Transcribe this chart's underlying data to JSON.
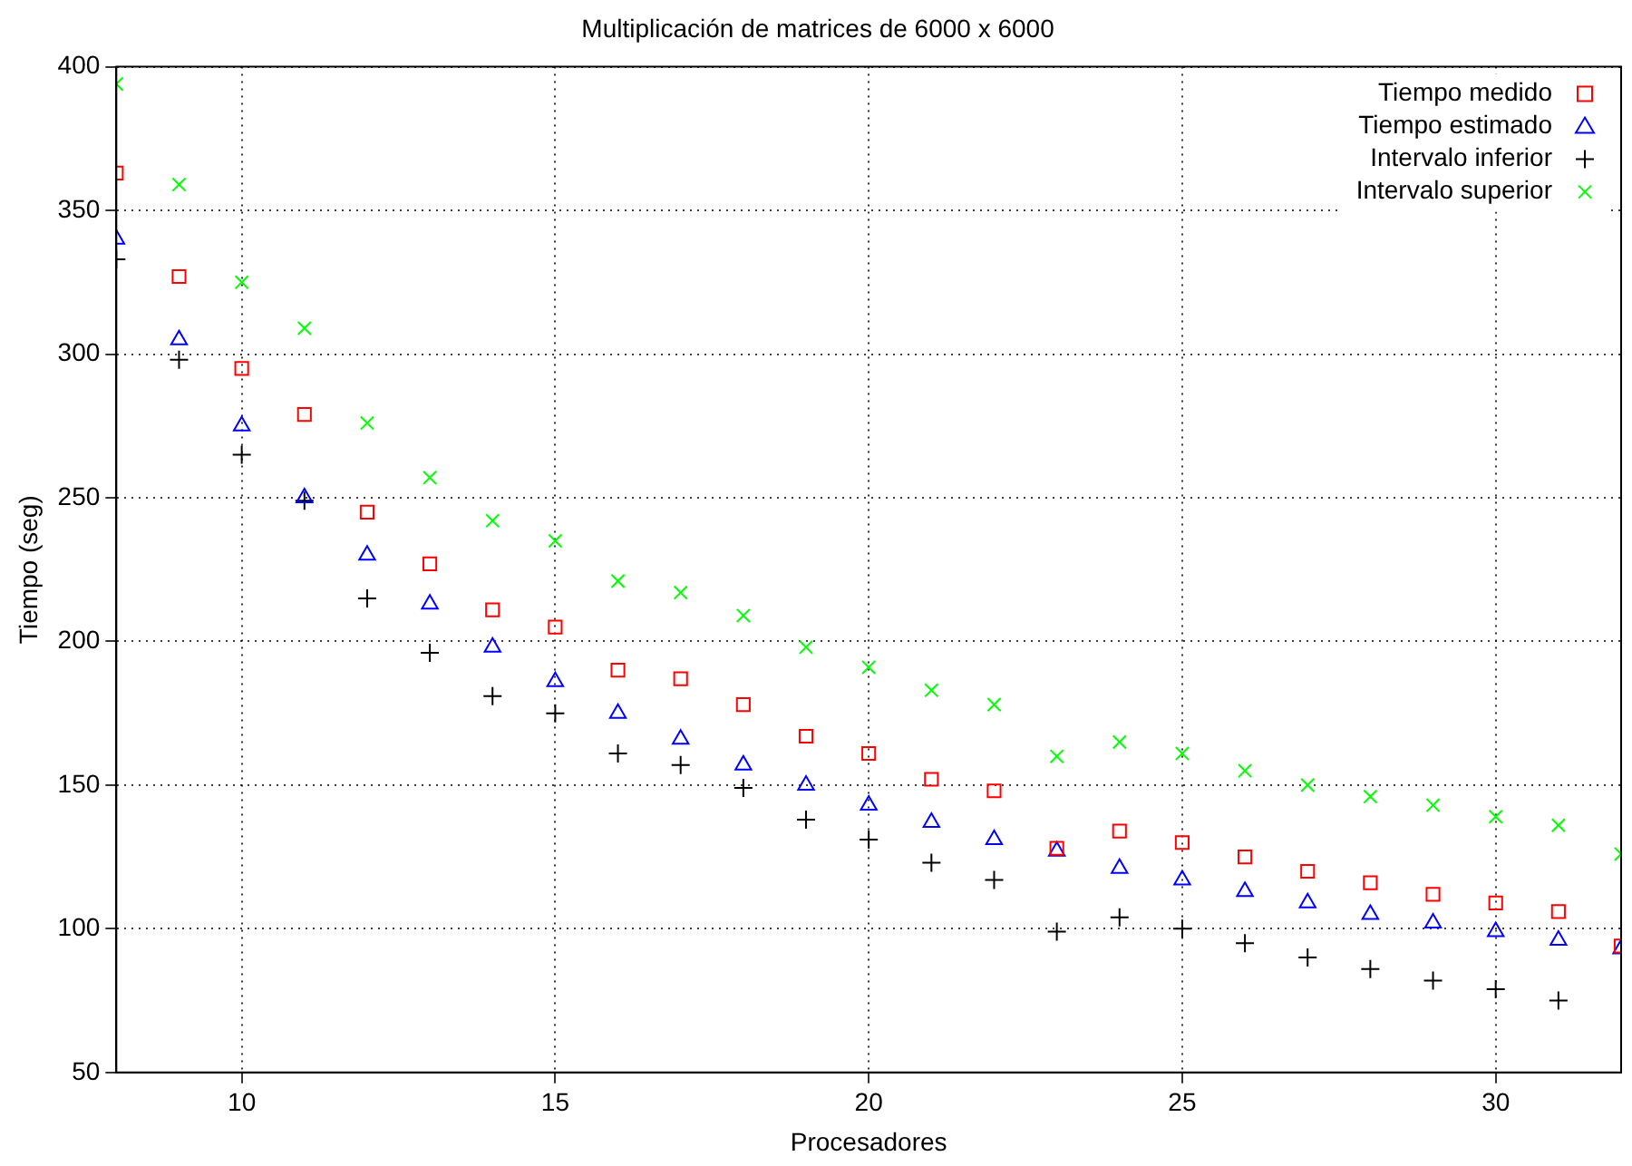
{
  "chart_data": {
    "type": "scatter",
    "title": "Multiplicación de matrices de 6000 x 6000",
    "xlabel": "Procesadores",
    "ylabel": "Tiempo (seg)",
    "x": [
      8,
      9,
      10,
      11,
      12,
      13,
      14,
      15,
      16,
      17,
      18,
      19,
      20,
      21,
      22,
      23,
      24,
      25,
      26,
      27,
      28,
      29,
      30,
      31,
      32
    ],
    "series": [
      {
        "name": "Tiempo medido",
        "color": "#ff0000",
        "marker": "square",
        "values": [
          363,
          327,
          295,
          279,
          245,
          227,
          211,
          205,
          190,
          187,
          178,
          167,
          161,
          152,
          148,
          128,
          134,
          130,
          125,
          120,
          116,
          112,
          109,
          106,
          94
        ]
      },
      {
        "name": "Tiempo estimado",
        "color": "#0000ff",
        "marker": "triangle",
        "values": [
          340,
          305,
          275,
          250,
          230,
          213,
          198,
          186,
          175,
          166,
          157,
          150,
          143,
          137,
          131,
          127,
          121,
          117,
          113,
          109,
          105,
          102,
          99,
          96,
          93
        ]
      },
      {
        "name": "Intervalo inferior",
        "color": "#000000",
        "values": [
          333,
          298,
          265,
          249,
          215,
          196,
          181,
          175,
          161,
          157,
          149,
          138,
          131,
          123,
          117,
          99,
          104,
          100,
          95,
          90,
          86,
          82,
          79,
          75,
          null
        ]
      },
      {
        "name": "Intervalo superior",
        "color": "#00ff00",
        "marker": "cross",
        "values": [
          394,
          359,
          325,
          309,
          276,
          257,
          242,
          235,
          221,
          217,
          209,
          198,
          191,
          183,
          178,
          160,
          165,
          161,
          155,
          150,
          146,
          143,
          139,
          136,
          126
        ]
      }
    ],
    "xlim": [
      8,
      32
    ],
    "xticks": [
      10,
      15,
      20,
      25,
      30
    ],
    "ylim": [
      50,
      400
    ],
    "yticks": [
      50,
      100,
      150,
      200,
      250,
      300,
      350,
      400
    ],
    "grid": true,
    "legend": "top right"
  }
}
